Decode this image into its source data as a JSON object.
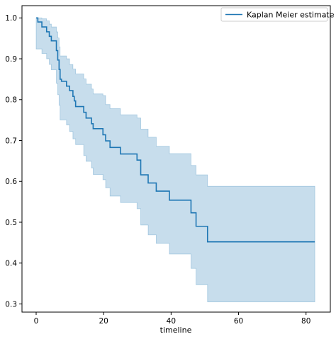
{
  "chart_data": {
    "type": "line",
    "title": "",
    "xlabel": "timeline",
    "ylabel": "",
    "xlim": [
      -4.2,
      87.2
    ],
    "ylim": [
      0.28,
      1.03
    ],
    "xticks": [
      0,
      20,
      40,
      60,
      80
    ],
    "yticks": [
      0.3,
      0.4,
      0.5,
      0.6,
      0.7,
      0.8,
      0.9,
      1.0
    ],
    "xtick_labels": [
      "0",
      "20",
      "40",
      "60",
      "80"
    ],
    "ytick_labels": [
      "0.3",
      "0.4",
      "0.5",
      "0.6",
      "0.7",
      "0.8",
      "0.9",
      "1.0"
    ],
    "grid": false,
    "legend": {
      "position": "top-right",
      "entries": [
        "Kaplan Meier estimate"
      ]
    },
    "series": [
      {
        "name": "Kaplan Meier estimate",
        "color": "#1f77b4",
        "band_color": "#1f77b4",
        "band_opacity": 0.25,
        "step_points": [
          [
            0,
            1.0
          ],
          [
            0.5,
            0.99
          ],
          [
            1.7,
            0.978
          ],
          [
            3.1,
            0.966
          ],
          [
            3.9,
            0.955
          ],
          [
            4.5,
            0.944
          ],
          [
            6.0,
            0.92
          ],
          [
            6.4,
            0.897
          ],
          [
            6.8,
            0.874
          ],
          [
            7.1,
            0.85
          ],
          [
            7.5,
            0.845
          ],
          [
            9.0,
            0.833
          ],
          [
            9.9,
            0.822
          ],
          [
            10.9,
            0.808
          ],
          [
            11.3,
            0.797
          ],
          [
            11.7,
            0.783
          ],
          [
            14.1,
            0.769
          ],
          [
            14.8,
            0.755
          ],
          [
            16.4,
            0.741
          ],
          [
            16.9,
            0.729
          ],
          [
            19.8,
            0.714
          ],
          [
            20.6,
            0.699
          ],
          [
            21.9,
            0.683
          ],
          [
            25.0,
            0.667
          ],
          [
            29.9,
            0.652
          ],
          [
            31.0,
            0.616
          ],
          [
            33.2,
            0.596
          ],
          [
            35.6,
            0.576
          ],
          [
            39.5,
            0.554
          ],
          [
            45.9,
            0.523
          ],
          [
            47.4,
            0.49
          ],
          [
            50.8,
            0.452
          ],
          [
            82.6,
            0.452
          ]
        ],
        "ci_upper": [
          [
            0,
            1.0
          ],
          [
            1.7,
            0.998
          ],
          [
            3.1,
            0.993
          ],
          [
            3.9,
            0.985
          ],
          [
            4.5,
            0.978
          ],
          [
            6.0,
            0.966
          ],
          [
            6.4,
            0.951
          ],
          [
            6.8,
            0.929
          ],
          [
            7.1,
            0.907
          ],
          [
            9.0,
            0.9
          ],
          [
            9.9,
            0.886
          ],
          [
            10.9,
            0.875
          ],
          [
            11.7,
            0.863
          ],
          [
            14.1,
            0.851
          ],
          [
            14.8,
            0.838
          ],
          [
            16.4,
            0.826
          ],
          [
            16.9,
            0.814
          ],
          [
            19.8,
            0.81
          ],
          [
            20.6,
            0.788
          ],
          [
            21.9,
            0.778
          ],
          [
            25.0,
            0.763
          ],
          [
            29.9,
            0.755
          ],
          [
            31.0,
            0.728
          ],
          [
            33.2,
            0.708
          ],
          [
            35.6,
            0.686
          ],
          [
            39.5,
            0.668
          ],
          [
            45.9,
            0.639
          ],
          [
            47.4,
            0.616
          ],
          [
            50.8,
            0.588
          ],
          [
            82.6,
            0.588
          ]
        ],
        "ci_lower": [
          [
            0,
            0.924
          ],
          [
            1.7,
            0.913
          ],
          [
            3.1,
            0.9
          ],
          [
            3.9,
            0.886
          ],
          [
            4.5,
            0.873
          ],
          [
            6.0,
            0.84
          ],
          [
            6.4,
            0.812
          ],
          [
            6.8,
            0.786
          ],
          [
            7.1,
            0.75
          ],
          [
            9.0,
            0.738
          ],
          [
            9.9,
            0.722
          ],
          [
            10.9,
            0.704
          ],
          [
            11.7,
            0.69
          ],
          [
            14.1,
            0.663
          ],
          [
            14.8,
            0.649
          ],
          [
            16.4,
            0.633
          ],
          [
            16.9,
            0.617
          ],
          [
            19.8,
            0.604
          ],
          [
            20.6,
            0.584
          ],
          [
            21.9,
            0.564
          ],
          [
            25.0,
            0.548
          ],
          [
            29.9,
            0.533
          ],
          [
            31.0,
            0.493
          ],
          [
            33.2,
            0.469
          ],
          [
            35.6,
            0.448
          ],
          [
            39.5,
            0.422
          ],
          [
            45.9,
            0.387
          ],
          [
            47.4,
            0.347
          ],
          [
            50.8,
            0.305
          ],
          [
            82.6,
            0.305
          ]
        ]
      }
    ]
  }
}
